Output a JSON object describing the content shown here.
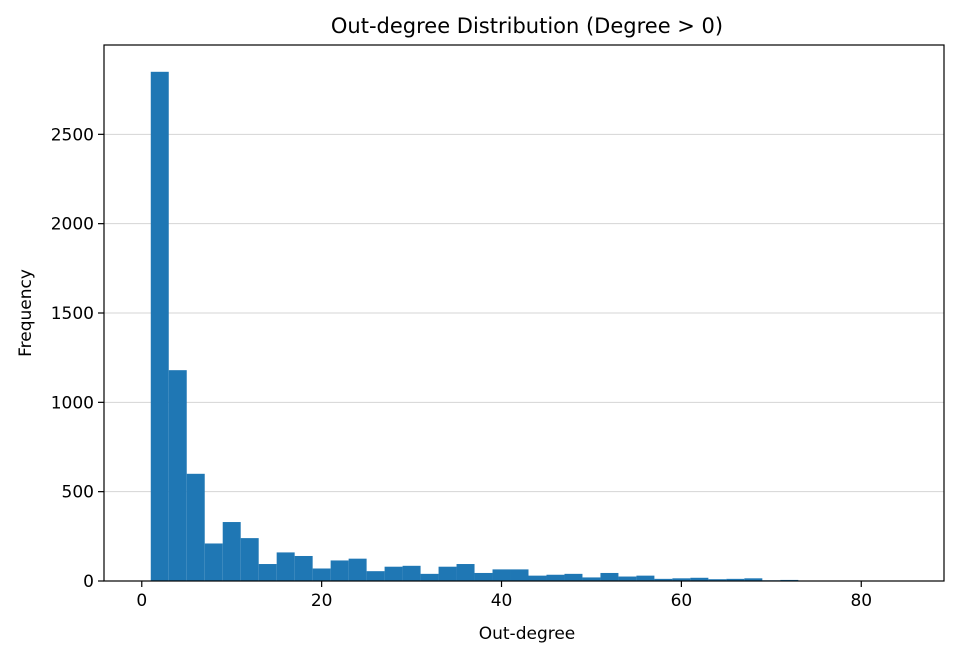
{
  "chart_data": {
    "type": "bar",
    "title": "Out-degree Distribution (Degree > 0)",
    "xlabel": "Out-degree",
    "ylabel": "Frequency",
    "xlim": [
      -4.2,
      89.2
    ],
    "ylim": [
      0,
      3000
    ],
    "x_ticks": [
      0,
      20,
      40,
      60,
      80
    ],
    "y_ticks": [
      0,
      500,
      1000,
      1500,
      2000,
      2500
    ],
    "grid": "y",
    "bar_color": "#1f77b4",
    "bin_start": 1,
    "bin_width": 2,
    "values": [
      2850,
      1180,
      600,
      210,
      330,
      240,
      95,
      160,
      140,
      70,
      115,
      125,
      55,
      80,
      85,
      40,
      80,
      95,
      45,
      65,
      65,
      30,
      35,
      40,
      20,
      45,
      25,
      30,
      12,
      15,
      18,
      10,
      12,
      15,
      4,
      6,
      2,
      1,
      1,
      1,
      1,
      1
    ]
  }
}
